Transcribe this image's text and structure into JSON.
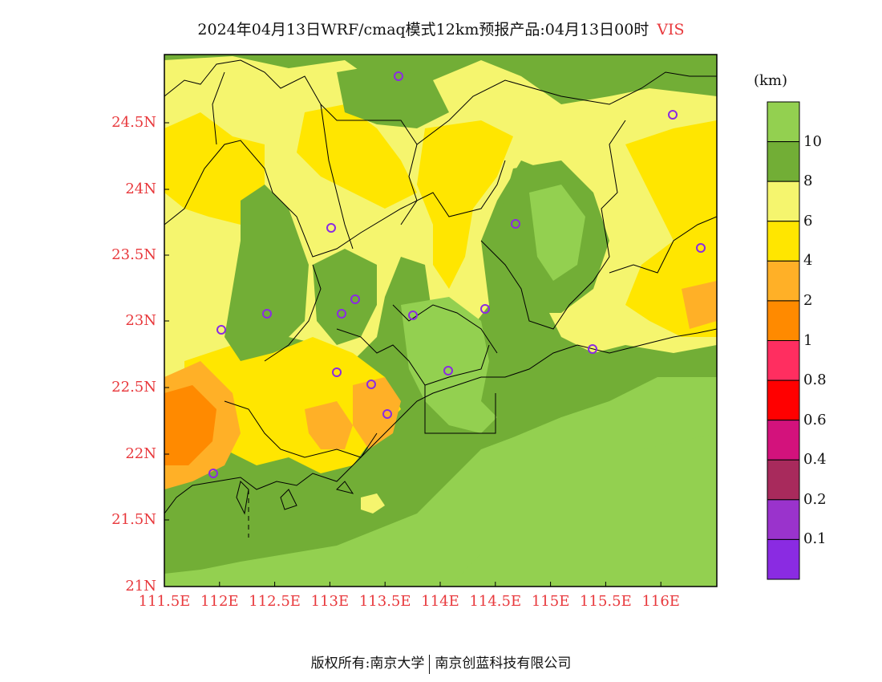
{
  "title": {
    "main": "2024年04月13日WRF/cmaq模式12km预报产品:04月13日00时",
    "variable": "VIS"
  },
  "map": {
    "lat_labels": [
      "24.5N",
      "24N",
      "23.5N",
      "23N",
      "22.5N",
      "22N",
      "21.5N",
      "21N"
    ],
    "lon_labels": [
      "111.5E",
      "112E",
      "112.5E",
      "113E",
      "113.5E",
      "114E",
      "114.5E",
      "115E",
      "115.5E",
      "116E"
    ],
    "colors": {
      "lt8": "#f5f56e",
      "lt6": "#ffe600",
      "lt4": "#ffb027",
      "lt2": "#ff8a00",
      "green_dark": "#72ae36",
      "green_light": "#93d050",
      "border": "#000000",
      "station_marker": "#8b2be2"
    },
    "station_count": 17
  },
  "colorbar": {
    "unit": "(km)",
    "colors": [
      "#93d050",
      "#72ae36",
      "#f5f56e",
      "#ffe600",
      "#ffb027",
      "#ff8a00",
      "#ff2e60",
      "#ff0000",
      "#d3127c",
      "#a82a5c",
      "#9a33cc",
      "#8a2be2"
    ],
    "labels": [
      "10",
      "8",
      "6",
      "4",
      "2",
      "1",
      "0.8",
      "0.6",
      "0.4",
      "0.2",
      "0.1"
    ]
  },
  "footer": {
    "left": "版权所有:南京大学",
    "right": "南京创蓝科技有限公司"
  }
}
